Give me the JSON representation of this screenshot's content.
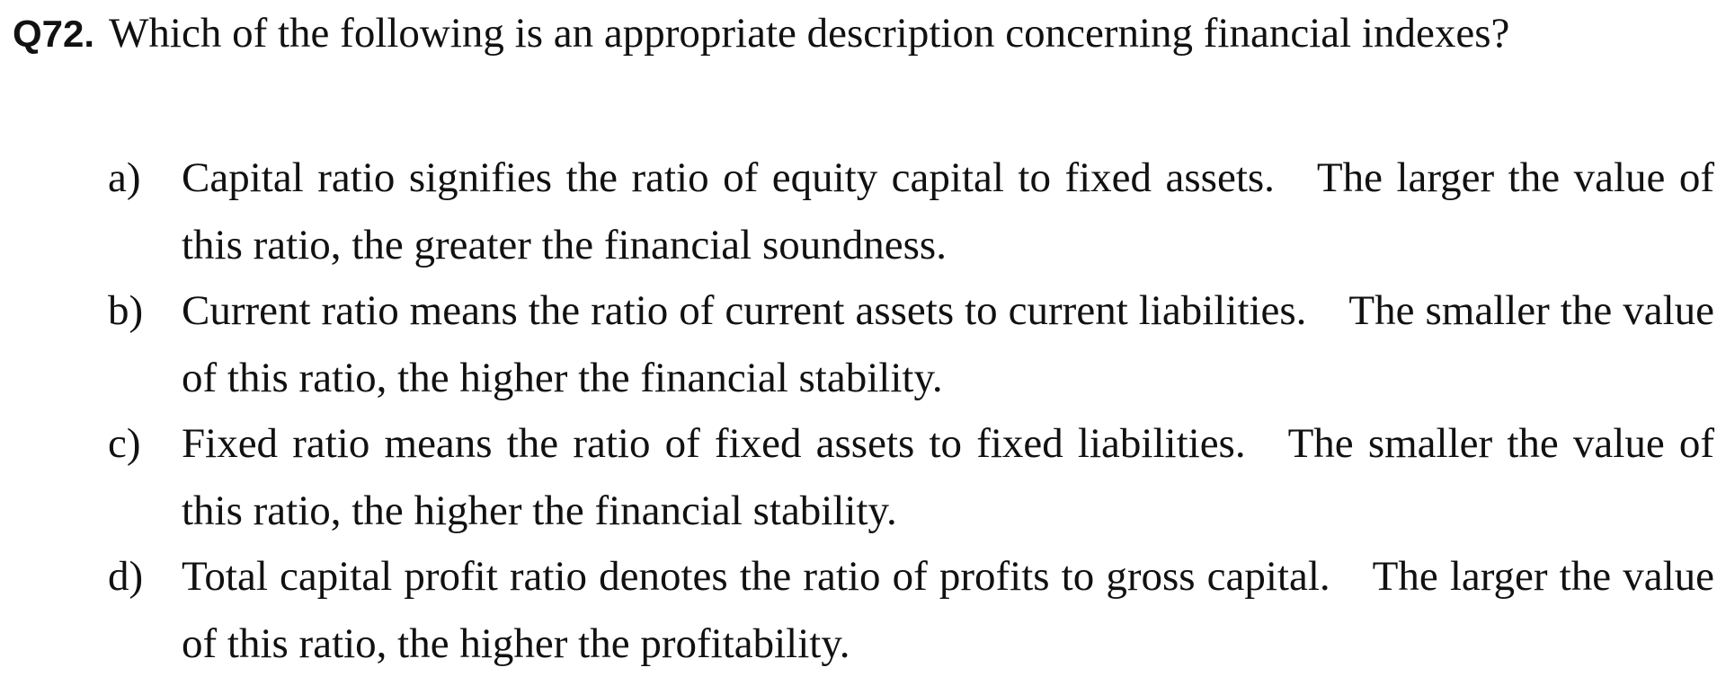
{
  "question": {
    "number": "Q72.",
    "text": "Which of the following is an appropriate description concerning financial indexes?"
  },
  "options": [
    {
      "letter": "a)",
      "text": "Capital ratio signifies the ratio of equity capital to fixed assets. The larger the value of this ratio, the greater the financial soundness."
    },
    {
      "letter": "b)",
      "text": "Current ratio means the ratio of current assets to current liabilities. The smaller the value of this ratio, the higher the financial stability."
    },
    {
      "letter": "c)",
      "text": "Fixed ratio means the ratio of fixed assets to fixed liabilities. The smaller the value of this ratio, the higher the financial stability."
    },
    {
      "letter": "d)",
      "text": "Total capital profit ratio denotes the ratio of profits to gross capital. The larger the value of this ratio, the higher the profitability."
    }
  ]
}
